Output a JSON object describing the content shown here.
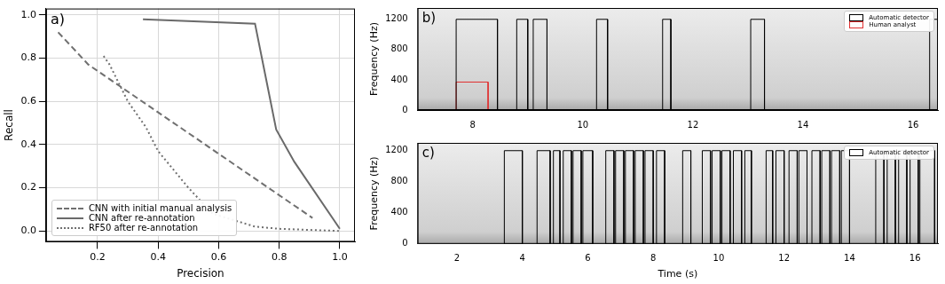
{
  "chart_data": [
    {
      "type": "line",
      "panel": "a)",
      "xlabel": "Precision",
      "ylabel": "Recall",
      "xlim": [
        0.03,
        1.05
      ],
      "ylim": [
        -0.05,
        1.03
      ],
      "xticks": [
        0.2,
        0.4,
        0.6,
        0.8,
        {
          "value": 1.0,
          "label": "1.0"
        }
      ],
      "yticks": [
        {
          "value": 0.0,
          "label": "0.0"
        },
        0.2,
        0.4,
        0.6,
        0.8,
        {
          "value": 1.0,
          "label": "1.0"
        }
      ],
      "grid": true,
      "legend": "lower left",
      "series": [
        {
          "name": "CNN with initial manual analysis",
          "color": "#707070",
          "line_style": "dashed",
          "x": [
            0.07,
            0.17,
            0.91
          ],
          "values": [
            0.92,
            0.77,
            0.06
          ]
        },
        {
          "name": "CNN after re-annotation",
          "color": "#6a6a6a",
          "line_style": "solid",
          "x": [
            0.35,
            0.72,
            0.75,
            0.79,
            0.85,
            1.0
          ],
          "values": [
            0.98,
            0.96,
            0.75,
            0.47,
            0.32,
            0.01
          ]
        },
        {
          "name": "RF50 after re-annotation",
          "color": "#707070",
          "line_style": "dotted",
          "x": [
            0.22,
            0.24,
            0.3,
            0.36,
            0.4,
            0.5,
            0.58,
            0.65,
            0.72,
            0.8,
            1.0
          ],
          "values": [
            0.81,
            0.77,
            0.6,
            0.48,
            0.37,
            0.2,
            0.08,
            0.05,
            0.02,
            0.01,
            0.0
          ]
        }
      ]
    },
    {
      "type": "rectangle",
      "panel": "b)",
      "ylabel": "Frequency (Hz)",
      "xlim": [
        7.0,
        16.45
      ],
      "ylim": [
        0,
        1350
      ],
      "xticks": [
        8,
        10,
        12,
        14,
        16
      ],
      "yticks": [
        0,
        400,
        800,
        1200
      ],
      "grid": false,
      "legend": "upper right",
      "series": [
        {
          "name": "Automatic detector",
          "color": "#000000",
          "boxes": [
            [
              7.7,
              8.45,
              0,
              1200
            ],
            [
              8.8,
              9.0,
              0,
              1200
            ],
            [
              9.1,
              9.35,
              0,
              1200
            ],
            [
              10.25,
              10.45,
              0,
              1200
            ],
            [
              11.45,
              11.6,
              0,
              1200
            ],
            [
              13.05,
              13.3,
              0,
              1200
            ],
            [
              16.3,
              16.45,
              0,
              1200
            ]
          ]
        },
        {
          "name": "Human analyst",
          "color": "#e03030",
          "boxes": [
            [
              7.7,
              8.28,
              0,
              370
            ]
          ]
        }
      ]
    },
    {
      "type": "rectangle",
      "panel": "c)",
      "xlabel": "Time (s)",
      "ylabel": "Frequency (Hz)",
      "xlim": [
        0.8,
        16.7
      ],
      "ylim": [
        0,
        1300
      ],
      "xticks": [
        2,
        4,
        6,
        8,
        10,
        12,
        14,
        16
      ],
      "yticks": [
        0,
        400,
        800,
        1200
      ],
      "grid": false,
      "legend": "upper right",
      "series": [
        {
          "name": "Automatic detector",
          "color": "#000000",
          "boxes": [
            [
              3.45,
              4.0,
              0,
              1200
            ],
            [
              4.45,
              4.85,
              0,
              1200
            ],
            [
              4.95,
              5.15,
              0,
              1200
            ],
            [
              5.25,
              5.5,
              0,
              1200
            ],
            [
              5.55,
              5.8,
              0,
              1200
            ],
            [
              5.85,
              6.15,
              0,
              1200
            ],
            [
              6.55,
              6.8,
              0,
              1200
            ],
            [
              6.85,
              7.1,
              0,
              1200
            ],
            [
              7.15,
              7.4,
              0,
              1200
            ],
            [
              7.45,
              7.7,
              0,
              1200
            ],
            [
              7.75,
              8.0,
              0,
              1200
            ],
            [
              8.1,
              8.35,
              0,
              1200
            ],
            [
              8.9,
              9.15,
              0,
              1200
            ],
            [
              9.5,
              9.75,
              0,
              1200
            ],
            [
              9.8,
              10.05,
              0,
              1200
            ],
            [
              10.1,
              10.35,
              0,
              1200
            ],
            [
              10.45,
              10.7,
              0,
              1200
            ],
            [
              10.8,
              11.0,
              0,
              1200
            ],
            [
              11.45,
              11.65,
              0,
              1200
            ],
            [
              11.75,
              12.0,
              0,
              1200
            ],
            [
              12.15,
              12.4,
              0,
              1200
            ],
            [
              12.45,
              12.7,
              0,
              1200
            ],
            [
              12.85,
              13.1,
              0,
              1200
            ],
            [
              13.15,
              13.4,
              0,
              1200
            ],
            [
              13.45,
              13.7,
              0,
              1200
            ],
            [
              13.75,
              14.0,
              0,
              1200
            ],
            [
              14.8,
              15.05,
              0,
              1200
            ],
            [
              15.15,
              15.4,
              0,
              1200
            ],
            [
              15.5,
              15.75,
              0,
              1200
            ],
            [
              15.85,
              16.1,
              0,
              1200
            ],
            [
              16.15,
              16.6,
              0,
              1200
            ]
          ]
        }
      ]
    }
  ]
}
